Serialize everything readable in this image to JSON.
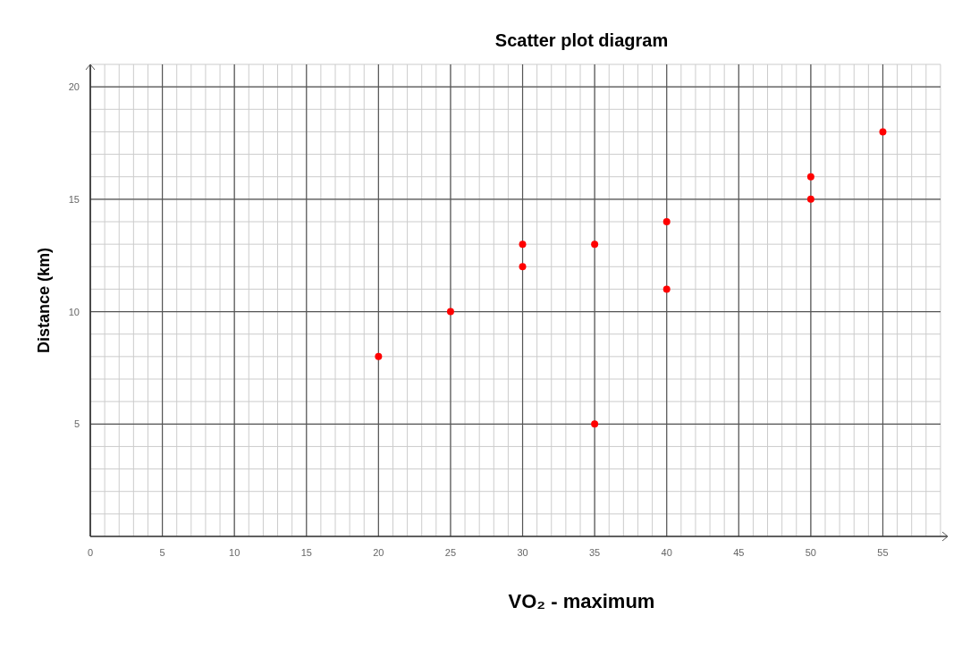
{
  "chart_data": {
    "type": "scatter",
    "title": "Scatter plot diagram",
    "xlabel": "VO₂ - maximum",
    "ylabel": "Distance (km)",
    "x": [
      20,
      25,
      30,
      30,
      35,
      35,
      40,
      40,
      50,
      50,
      55
    ],
    "values": [
      8,
      10,
      13,
      12,
      13,
      5,
      14,
      11,
      16,
      15,
      18
    ],
    "color": "#ff0000",
    "marker": "circle",
    "xlim": [
      0,
      59.5
    ],
    "ylim": [
      0,
      21
    ],
    "xticks": [
      0,
      5,
      10,
      15,
      20,
      25,
      30,
      35,
      40,
      45,
      50,
      55
    ],
    "yticks": [
      5,
      10,
      15,
      20
    ],
    "grid": true
  }
}
